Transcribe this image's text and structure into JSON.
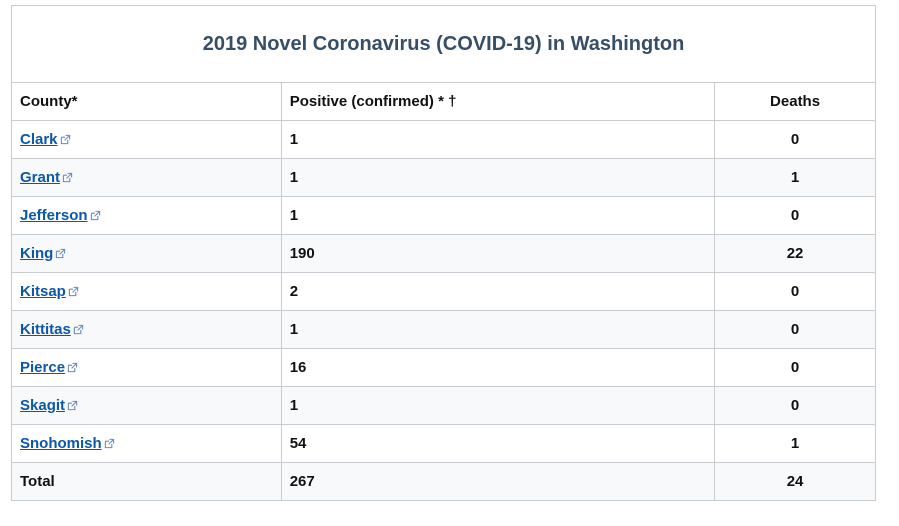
{
  "table": {
    "title": "2019 Novel Coronavirus (COVID-19) in Washington",
    "header": [
      "County*",
      "Positive (confirmed) * †",
      "Deaths"
    ],
    "rows": [
      [
        "Clark",
        1,
        0
      ],
      [
        "Grant",
        1,
        1
      ],
      [
        "Jefferson",
        1,
        0
      ],
      [
        "King",
        190,
        22
      ],
      [
        "Kitsap",
        2,
        0
      ],
      [
        "Kittitas",
        1,
        0
      ],
      [
        "Pierce",
        16,
        0
      ],
      [
        "Skagit",
        1,
        0
      ],
      [
        "Snohomish",
        54,
        1
      ]
    ],
    "total": [
      "Total",
      267,
      24
    ]
  }
}
